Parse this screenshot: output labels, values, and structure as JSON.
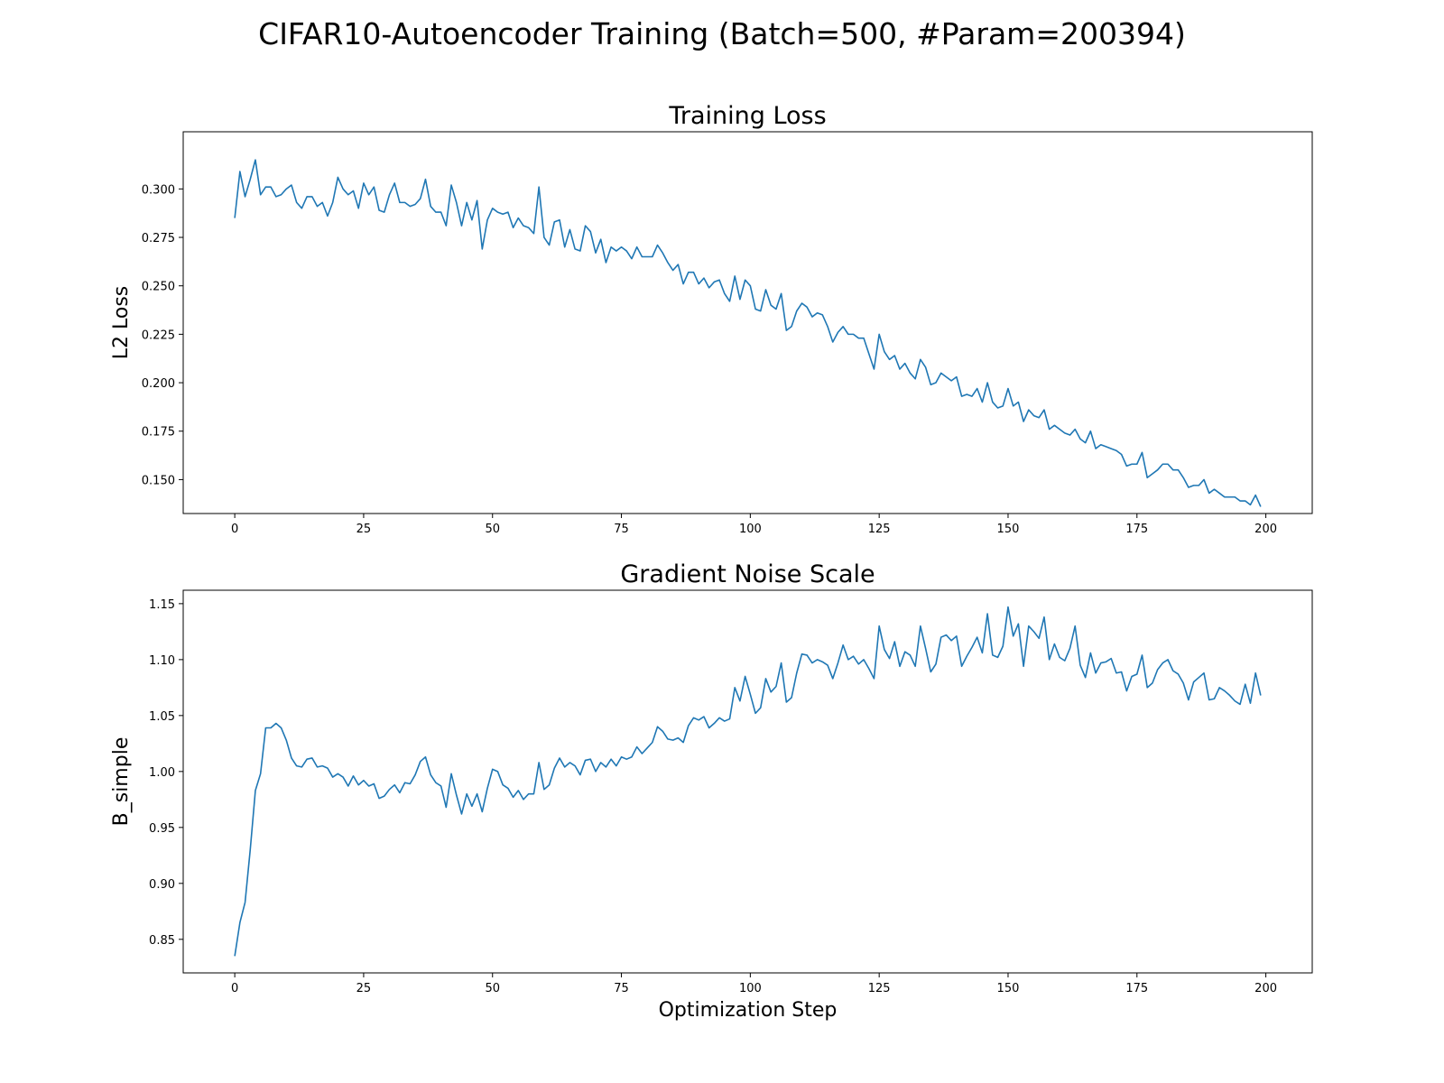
{
  "figure": {
    "suptitle": "CIFAR10-Autoencoder Training (Batch=500, #Param=200394)",
    "line_color": "#1f77b4"
  },
  "chart_data": [
    {
      "type": "line",
      "title": "Training Loss",
      "xlabel": "",
      "ylabel": "L2 Loss",
      "xlim": [
        -10,
        209
      ],
      "ylim": [
        0.1325,
        0.3295
      ],
      "xticks": [
        0,
        25,
        50,
        75,
        100,
        125,
        150,
        175,
        200
      ],
      "xtick_labels": [
        "0",
        "25",
        "50",
        "75",
        "100",
        "125",
        "150",
        "175",
        "200"
      ],
      "yticks": [
        0.15,
        0.175,
        0.2,
        0.225,
        0.25,
        0.275,
        0.3
      ],
      "ytick_labels": [
        "0.150",
        "0.175",
        "0.200",
        "0.225",
        "0.250",
        "0.275",
        "0.300"
      ],
      "grid": false,
      "series": [
        {
          "x_start": 0,
          "x_step": 1,
          "values": [
            0.285,
            0.309,
            0.296,
            0.305,
            0.315,
            0.297,
            0.301,
            0.301,
            0.296,
            0.297,
            0.3,
            0.302,
            0.293,
            0.29,
            0.296,
            0.296,
            0.291,
            0.293,
            0.286,
            0.293,
            0.306,
            0.3,
            0.297,
            0.299,
            0.29,
            0.303,
            0.297,
            0.301,
            0.289,
            0.288,
            0.297,
            0.303,
            0.293,
            0.293,
            0.291,
            0.292,
            0.295,
            0.305,
            0.291,
            0.288,
            0.288,
            0.281,
            0.302,
            0.293,
            0.281,
            0.293,
            0.284,
            0.294,
            0.269,
            0.284,
            0.29,
            0.288,
            0.287,
            0.288,
            0.28,
            0.285,
            0.281,
            0.28,
            0.277,
            0.301,
            0.275,
            0.271,
            0.283,
            0.284,
            0.27,
            0.279,
            0.269,
            0.268,
            0.281,
            0.278,
            0.267,
            0.274,
            0.262,
            0.27,
            0.268,
            0.27,
            0.268,
            0.264,
            0.27,
            0.265,
            0.265,
            0.265,
            0.271,
            0.267,
            0.262,
            0.258,
            0.261,
            0.251,
            0.257,
            0.257,
            0.251,
            0.254,
            0.249,
            0.252,
            0.253,
            0.246,
            0.242,
            0.255,
            0.243,
            0.253,
            0.25,
            0.238,
            0.237,
            0.248,
            0.24,
            0.238,
            0.246,
            0.227,
            0.229,
            0.237,
            0.241,
            0.239,
            0.234,
            0.236,
            0.235,
            0.229,
            0.221,
            0.226,
            0.229,
            0.225,
            0.225,
            0.223,
            0.223,
            0.215,
            0.207,
            0.225,
            0.216,
            0.212,
            0.214,
            0.207,
            0.21,
            0.205,
            0.202,
            0.212,
            0.208,
            0.199,
            0.2,
            0.205,
            0.203,
            0.201,
            0.203,
            0.193,
            0.194,
            0.193,
            0.197,
            0.19,
            0.2,
            0.19,
            0.187,
            0.188,
            0.197,
            0.188,
            0.19,
            0.18,
            0.186,
            0.183,
            0.182,
            0.186,
            0.176,
            0.178,
            0.176,
            0.174,
            0.173,
            0.176,
            0.171,
            0.169,
            0.175,
            0.166,
            0.168,
            0.167,
            0.166,
            0.165,
            0.163,
            0.157,
            0.158,
            0.158,
            0.164,
            0.151,
            0.153,
            0.155,
            0.158,
            0.158,
            0.155,
            0.155,
            0.151,
            0.146,
            0.147,
            0.147,
            0.15,
            0.143,
            0.145,
            0.143,
            0.141,
            0.141,
            0.141,
            0.139,
            0.139,
            0.137,
            0.142,
            0.136
          ]
        }
      ]
    },
    {
      "type": "line",
      "title": "Gradient Noise Scale",
      "xlabel": "Optimization Step",
      "ylabel": "B_simple",
      "xlim": [
        -10,
        209
      ],
      "ylim": [
        0.82,
        1.162
      ],
      "xticks": [
        0,
        25,
        50,
        75,
        100,
        125,
        150,
        175,
        200
      ],
      "xtick_labels": [
        "0",
        "25",
        "50",
        "75",
        "100",
        "125",
        "150",
        "175",
        "200"
      ],
      "yticks": [
        0.85,
        0.9,
        0.95,
        1.0,
        1.05,
        1.1,
        1.15
      ],
      "ytick_labels": [
        "0.85",
        "0.90",
        "0.95",
        "1.00",
        "1.05",
        "1.10",
        "1.15"
      ],
      "grid": false,
      "series": [
        {
          "x_start": 0,
          "x_step": 1,
          "values": [
            0.835,
            0.865,
            0.883,
            0.93,
            0.983,
            0.998,
            1.039,
            1.039,
            1.043,
            1.039,
            1.028,
            1.012,
            1.005,
            1.004,
            1.011,
            1.012,
            1.004,
            1.005,
            1.003,
            0.995,
            0.998,
            0.995,
            0.987,
            0.996,
            0.988,
            0.992,
            0.987,
            0.989,
            0.976,
            0.978,
            0.984,
            0.988,
            0.981,
            0.99,
            0.989,
            0.997,
            1.009,
            1.013,
            0.997,
            0.99,
            0.987,
            0.968,
            0.998,
            0.979,
            0.962,
            0.98,
            0.969,
            0.98,
            0.964,
            0.985,
            1.002,
            1.0,
            0.988,
            0.985,
            0.977,
            0.983,
            0.975,
            0.98,
            0.98,
            1.008,
            0.984,
            0.988,
            1.003,
            1.012,
            1.004,
            1.008,
            1.005,
            0.997,
            1.01,
            1.011,
            1.0,
            1.008,
            1.004,
            1.011,
            1.005,
            1.013,
            1.011,
            1.013,
            1.022,
            1.016,
            1.021,
            1.026,
            1.04,
            1.036,
            1.029,
            1.028,
            1.03,
            1.026,
            1.041,
            1.048,
            1.046,
            1.049,
            1.039,
            1.043,
            1.048,
            1.045,
            1.047,
            1.075,
            1.063,
            1.085,
            1.069,
            1.052,
            1.057,
            1.083,
            1.071,
            1.076,
            1.097,
            1.062,
            1.066,
            1.088,
            1.105,
            1.104,
            1.097,
            1.1,
            1.098,
            1.095,
            1.083,
            1.097,
            1.113,
            1.1,
            1.103,
            1.096,
            1.1,
            1.092,
            1.083,
            1.13,
            1.109,
            1.101,
            1.116,
            1.094,
            1.107,
            1.104,
            1.094,
            1.13,
            1.11,
            1.089,
            1.096,
            1.12,
            1.122,
            1.117,
            1.121,
            1.094,
            1.103,
            1.111,
            1.12,
            1.106,
            1.141,
            1.104,
            1.102,
            1.112,
            1.147,
            1.121,
            1.132,
            1.094,
            1.13,
            1.125,
            1.119,
            1.138,
            1.1,
            1.114,
            1.102,
            1.099,
            1.11,
            1.13,
            1.095,
            1.084,
            1.106,
            1.088,
            1.097,
            1.098,
            1.101,
            1.088,
            1.089,
            1.072,
            1.085,
            1.087,
            1.104,
            1.075,
            1.079,
            1.091,
            1.097,
            1.1,
            1.09,
            1.087,
            1.079,
            1.064,
            1.08,
            1.084,
            1.088,
            1.064,
            1.065,
            1.075,
            1.072,
            1.068,
            1.063,
            1.06,
            1.078,
            1.061,
            1.088,
            1.068
          ]
        }
      ]
    }
  ]
}
